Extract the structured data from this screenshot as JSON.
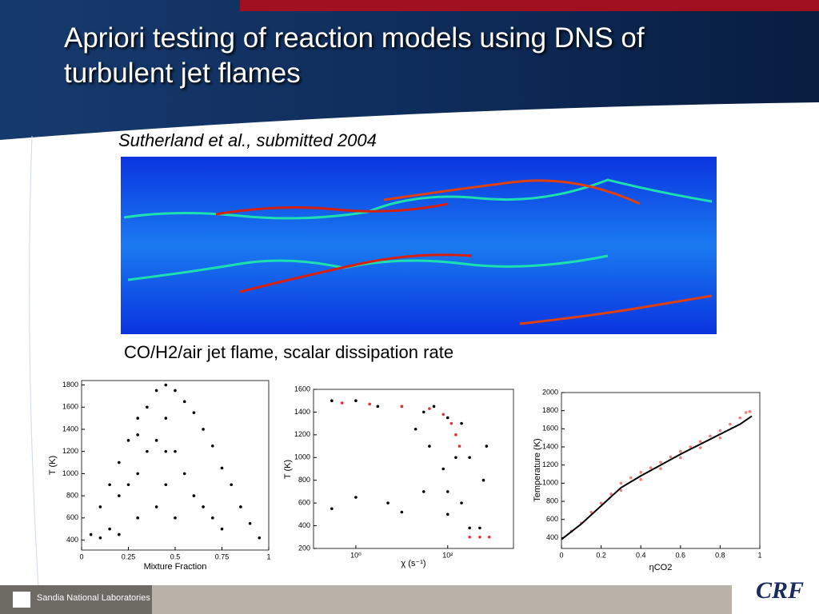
{
  "header": {
    "title": "Apriori testing of reaction models using DNS of turbulent jet flames"
  },
  "citation": "Sutherland et al., submitted 2004",
  "caption": "CO/H2/air jet flame, scalar dissipation rate",
  "footer": {
    "organization": "Sandia National Laboratories",
    "logo": "CRF"
  },
  "chart_data": [
    {
      "type": "scatter",
      "xlabel": "Mixture Fraction",
      "ylabel": "T (K)",
      "xlim": [
        0,
        1
      ],
      "xticks": [
        0,
        0.25,
        0.5,
        0.75,
        1
      ],
      "ylim": [
        310,
        1840
      ],
      "yticks": [
        400,
        600,
        800,
        1000,
        1200,
        1400,
        1600,
        1800
      ],
      "series": [
        {
          "color": "#000000",
          "x": [
            0.05,
            0.1,
            0.1,
            0.15,
            0.15,
            0.2,
            0.2,
            0.2,
            0.25,
            0.25,
            0.3,
            0.3,
            0.3,
            0.35,
            0.35,
            0.4,
            0.4,
            0.4,
            0.45,
            0.45,
            0.45,
            0.5,
            0.5,
            0.5,
            0.55,
            0.55,
            0.6,
            0.6,
            0.65,
            0.65,
            0.7,
            0.7,
            0.75,
            0.75,
            0.8,
            0.85,
            0.9,
            0.95,
            0.45,
            0.3
          ],
          "y": [
            450,
            700,
            420,
            900,
            500,
            1100,
            800,
            450,
            1300,
            900,
            1500,
            1000,
            600,
            1600,
            1200,
            1750,
            1300,
            700,
            1800,
            1500,
            900,
            1750,
            1200,
            600,
            1650,
            1000,
            1550,
            800,
            1400,
            700,
            1250,
            600,
            1050,
            500,
            900,
            700,
            550,
            420,
            1200,
            1350
          ]
        }
      ]
    },
    {
      "type": "scatter",
      "xscale": "log",
      "xlabel": "χ (s⁻¹)",
      "ylabel": "T (K)",
      "xlim": [
        0.12,
        2700
      ],
      "xticks": [
        {
          "value": 1,
          "label": "10⁰"
        },
        {
          "value": 100,
          "label": "10²"
        }
      ],
      "ylim": [
        200,
        1600
      ],
      "yticks": [
        200,
        400,
        600,
        800,
        1000,
        1200,
        1400,
        1600
      ],
      "series": [
        {
          "color": "#000000",
          "x": [
            1,
            3,
            10,
            30,
            100,
            200,
            0.3,
            50,
            150,
            80,
            30,
            5,
            1,
            0.3,
            10,
            100,
            300,
            500,
            200,
            600,
            300,
            40,
            20,
            700,
            100
          ],
          "y": [
            1500,
            1450,
            1450,
            1400,
            1350,
            1300,
            1500,
            1450,
            1000,
            900,
            700,
            600,
            650,
            550,
            520,
            500,
            380,
            380,
            600,
            800,
            1000,
            1100,
            1250,
            1100,
            700
          ]
        },
        {
          "color": "#e8312f",
          "x": [
            0.5,
            2,
            10,
            40,
            80,
            120,
            150,
            180,
            300,
            500,
            800
          ],
          "y": [
            1480,
            1470,
            1450,
            1430,
            1380,
            1300,
            1200,
            1100,
            300,
            300,
            300
          ]
        }
      ]
    },
    {
      "type": "scatter",
      "xlabel": "ηCO2",
      "ylabel": "Temperature (K)",
      "xlim": [
        0,
        1
      ],
      "xticks": [
        0,
        0.2,
        0.4,
        0.6,
        0.8,
        1
      ],
      "ylim": [
        280,
        2000
      ],
      "yticks": [
        400,
        600,
        800,
        1000,
        1200,
        1400,
        1600,
        1800,
        2000
      ],
      "series": [
        {
          "color": "#f08080",
          "x": [
            0.05,
            0.1,
            0.15,
            0.2,
            0.25,
            0.3,
            0.35,
            0.4,
            0.45,
            0.5,
            0.55,
            0.6,
            0.65,
            0.7,
            0.75,
            0.8,
            0.85,
            0.9,
            0.93,
            0.95,
            0.3,
            0.4,
            0.5,
            0.6,
            0.7,
            0.8
          ],
          "y": [
            470,
            560,
            680,
            780,
            880,
            1000,
            1060,
            1120,
            1170,
            1230,
            1290,
            1350,
            1400,
            1460,
            1520,
            1580,
            1650,
            1720,
            1780,
            1790,
            920,
            1040,
            1160,
            1280,
            1390,
            1500
          ]
        }
      ],
      "lines": [
        {
          "color": "#000000",
          "x": [
            0,
            0.1,
            0.2,
            0.3,
            0.4,
            0.5,
            0.6,
            0.7,
            0.8,
            0.9,
            0.96
          ],
          "y": [
            380,
            550,
            750,
            950,
            1080,
            1200,
            1320,
            1430,
            1540,
            1650,
            1740
          ]
        }
      ]
    }
  ]
}
